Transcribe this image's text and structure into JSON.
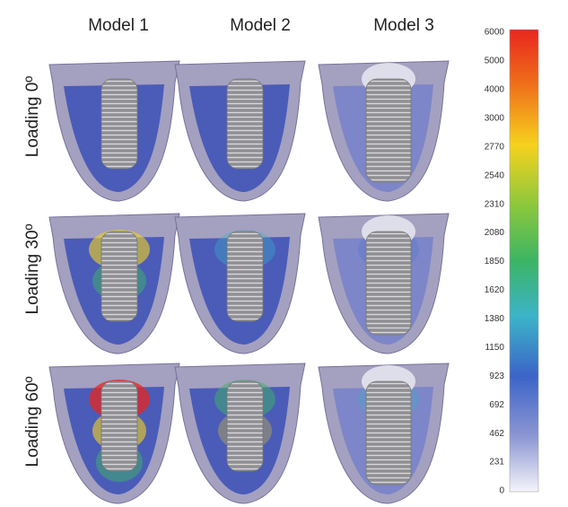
{
  "columns": [
    "Model 1",
    "Model 2",
    "Model 3"
  ],
  "rows": [
    "Loading 0º",
    "Loading 30º",
    "Loading 60º"
  ],
  "colorbar": {
    "labels": [
      6000,
      5000,
      4000,
      3000,
      2770,
      2540,
      2310,
      2080,
      1850,
      1620,
      1380,
      1150,
      923,
      692,
      462,
      231,
      0
    ]
  }
}
